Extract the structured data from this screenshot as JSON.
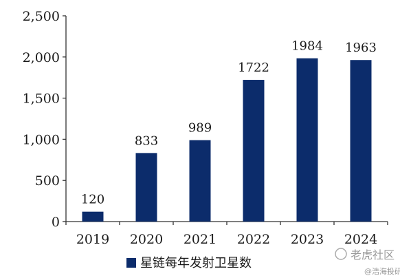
{
  "chart_data": {
    "type": "bar",
    "categories": [
      "2019",
      "2020",
      "2021",
      "2022",
      "2023",
      "2024"
    ],
    "series": [
      {
        "name": "星链每年发射卫星数",
        "values": [
          120,
          833,
          989,
          1722,
          1984,
          1963
        ],
        "color": "#0c2c6b"
      }
    ],
    "data_labels": [
      "120",
      "833",
      "989",
      "1722",
      "1984",
      "1963"
    ],
    "y_tick_labels": [
      "0",
      "500",
      "1,000",
      "1,500",
      "2,000",
      "2,500"
    ],
    "y_ticks": [
      0,
      500,
      1000,
      1500,
      2000,
      2500
    ],
    "ylim": [
      0,
      2500
    ],
    "title": "",
    "xlabel": "",
    "ylabel": "",
    "grid": false,
    "legend_position": "bottom-center"
  },
  "watermark": {
    "line1": "老虎社区",
    "line2": "@浩海投研"
  },
  "colors": {
    "bar": "#0c2c6b",
    "axis": "#333333"
  }
}
